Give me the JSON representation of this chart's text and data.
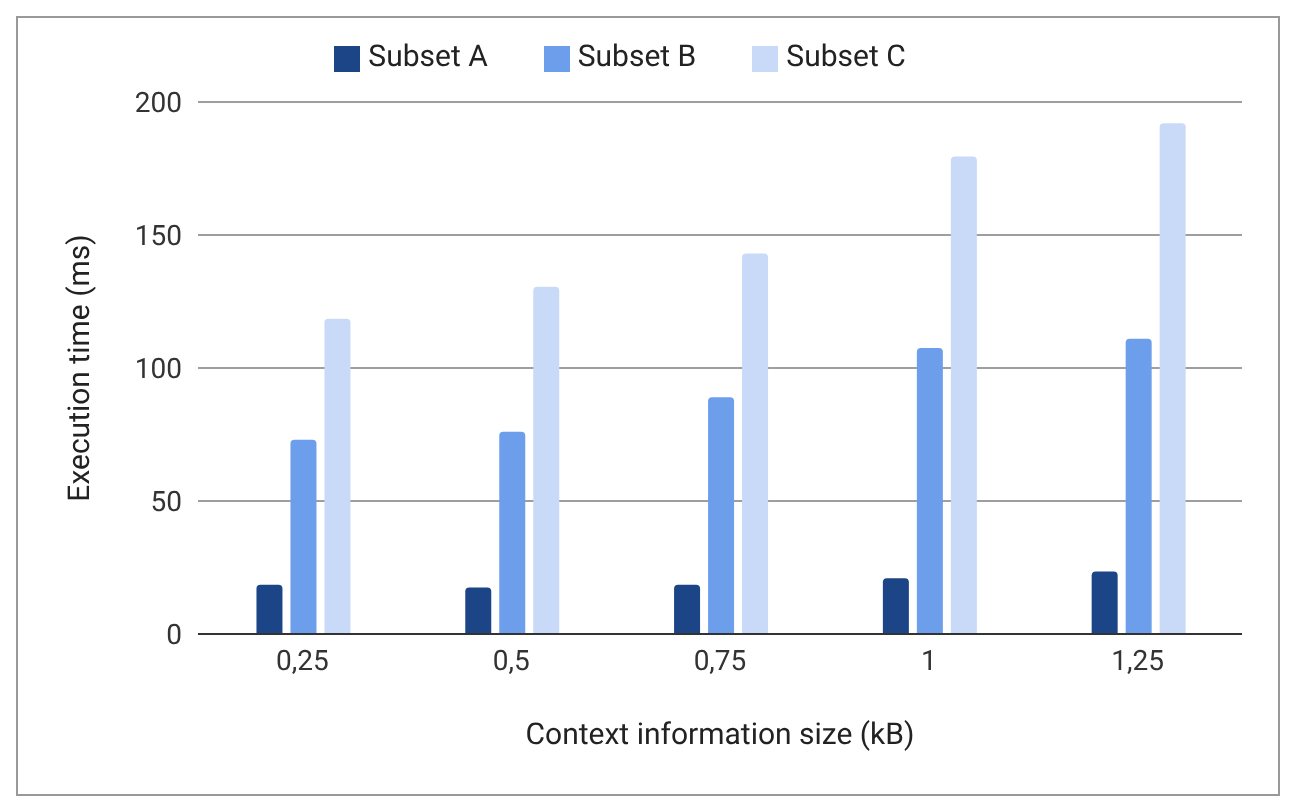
{
  "chart_data": {
    "type": "bar",
    "xlabel": "Context information size (kB)",
    "ylabel": "Execution time (ms)",
    "categories": [
      "0,25",
      "0,5",
      "0,75",
      "1",
      "1,25"
    ],
    "series": [
      {
        "name": "Subset A",
        "color": "#1c4587",
        "values": [
          18.5,
          17.5,
          18.5,
          21,
          23.5
        ]
      },
      {
        "name": "Subset B",
        "color": "#6d9eeb",
        "values": [
          73,
          76,
          89,
          107.5,
          111
        ]
      },
      {
        "name": "Subset C",
        "color": "#c9daf8",
        "values": [
          118.5,
          130.5,
          143,
          179.5,
          192
        ]
      }
    ],
    "ylim": [
      0,
      200
    ],
    "yticks": [
      0,
      50,
      100,
      150,
      200
    ],
    "grid": "y",
    "legend": "top"
  }
}
